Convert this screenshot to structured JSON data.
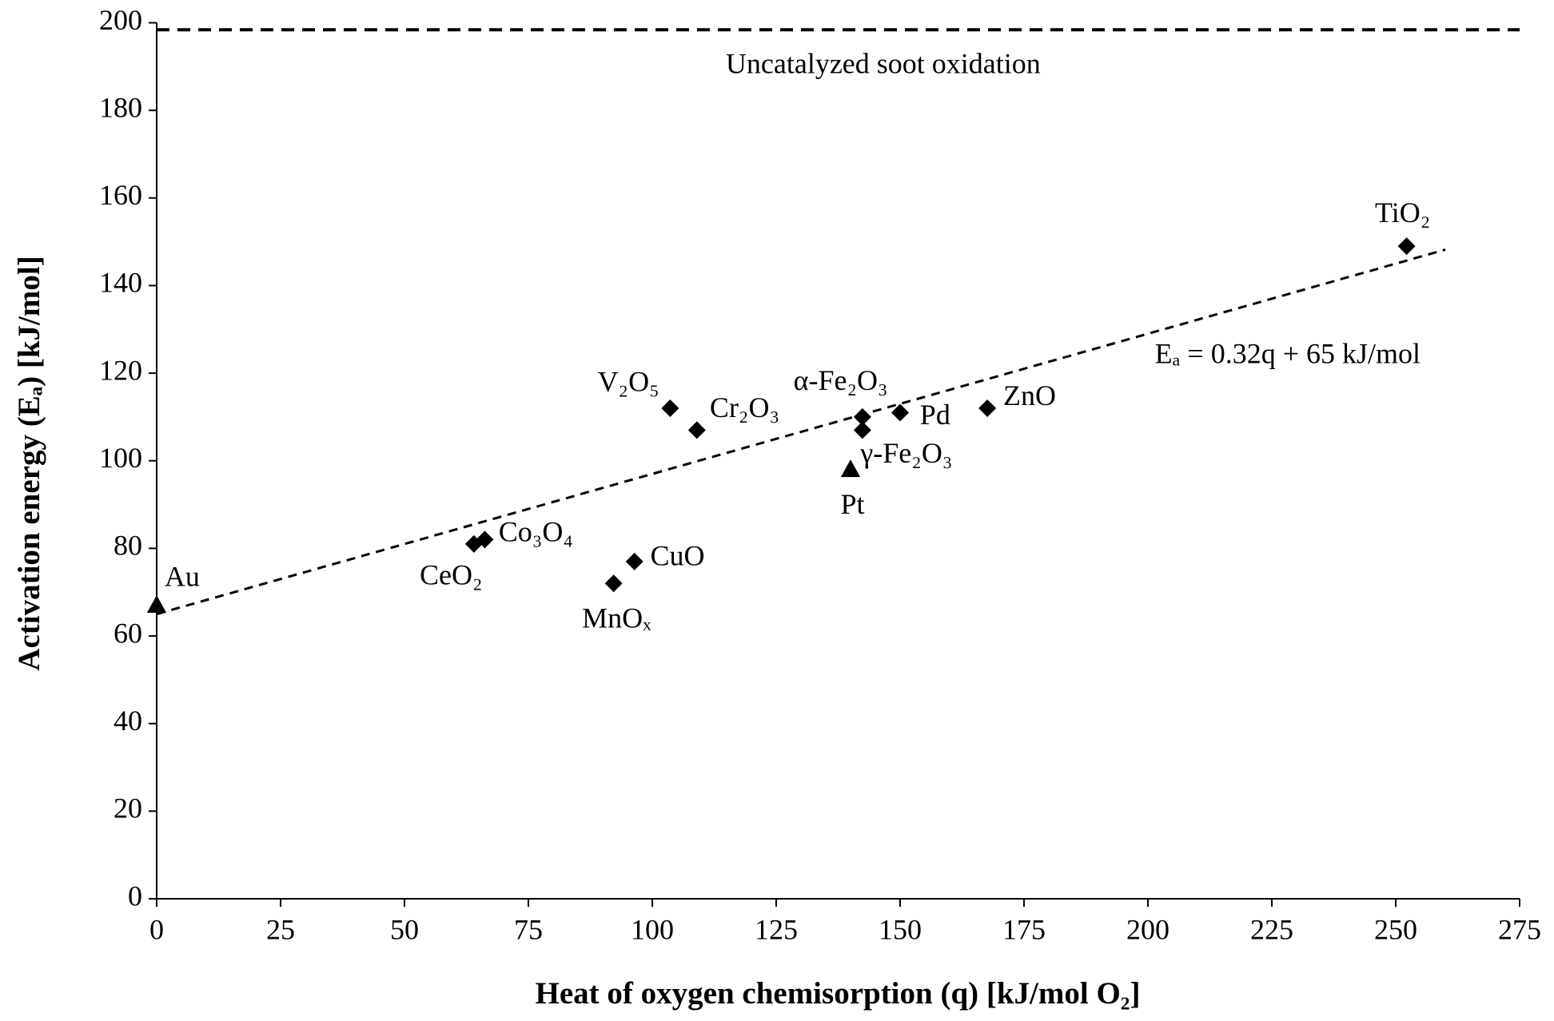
{
  "chart_data": {
    "type": "scatter",
    "xlabel": "Heat of oxygen chemisorption (q) [kJ/mol O₂]",
    "ylabel": "Activation energy (Eₐ) [kJ/mol]",
    "xlim": [
      0,
      275
    ],
    "xticks": [
      0,
      25,
      50,
      75,
      100,
      125,
      150,
      175,
      200,
      225,
      250,
      275
    ],
    "ylim": [
      0,
      200
    ],
    "yticks": [
      0,
      20,
      40,
      60,
      80,
      100,
      120,
      140,
      160,
      180,
      200
    ],
    "color": "#000000",
    "points": [
      {
        "label": "Au",
        "x": 0,
        "y": 67,
        "marker": "triangle"
      },
      {
        "label": "CeO₂",
        "x": 64,
        "y": 81,
        "marker": "diamond"
      },
      {
        "label": "Co₃O₄",
        "x": 66.2,
        "y": 82,
        "marker": "diamond"
      },
      {
        "label": "MnOₓ",
        "x": 92.2,
        "y": 72,
        "marker": "diamond"
      },
      {
        "label": "CuO",
        "x": 96.4,
        "y": 77,
        "marker": "diamond"
      },
      {
        "label": "V₂O₅",
        "x": 103.6,
        "y": 112,
        "marker": "diamond"
      },
      {
        "label": "Cr₂O₃",
        "x": 109,
        "y": 107,
        "marker": "diamond"
      },
      {
        "label": "Pt",
        "x": 140,
        "y": 98,
        "marker": "triangle"
      },
      {
        "label": "α-Fe₂O₃",
        "x": 142.4,
        "y": 110,
        "marker": "diamond"
      },
      {
        "label": "γ-Fe₂O₃",
        "x": 142.4,
        "y": 107,
        "marker": "diamond"
      },
      {
        "label": "Pd",
        "x": 150,
        "y": 111,
        "marker": "diamond"
      },
      {
        "label": "ZnO",
        "x": 167.6,
        "y": 112,
        "marker": "diamond"
      },
      {
        "label": "TiO₂",
        "x": 252.2,
        "y": 149,
        "marker": "diamond"
      }
    ],
    "trend_line": {
      "label": "Eₐ = 0.32q + 65 kJ/mol",
      "x": [
        0,
        260
      ],
      "y": [
        65,
        148.2
      ]
    },
    "reference_line": {
      "label": "Uncatalyzed soot oxidation",
      "y": 198.4
    }
  }
}
